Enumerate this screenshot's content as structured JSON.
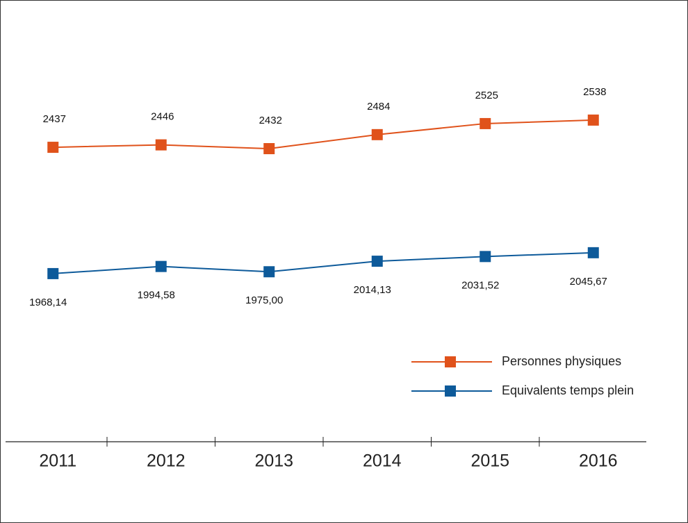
{
  "chart_data": {
    "type": "line",
    "categories": [
      "2011",
      "2012",
      "2013",
      "2014",
      "2015",
      "2016"
    ],
    "series": [
      {
        "name": "Personnes physiques",
        "color": "#e0521b",
        "values": [
          2437,
          2446,
          2432,
          2484,
          2525,
          2538
        ]
      },
      {
        "name": "Equivalents temps plein",
        "color": "#0d5a9a",
        "values": [
          1968.14,
          1994.58,
          1975.0,
          2014.13,
          2031.52,
          2045.67
        ],
        "value_labels": [
          "1968,14",
          "1994,58",
          "1975,00",
          "2014,13",
          "2031,52",
          "2045,67"
        ]
      }
    ],
    "ylim": [
      1344,
      2958
    ]
  }
}
